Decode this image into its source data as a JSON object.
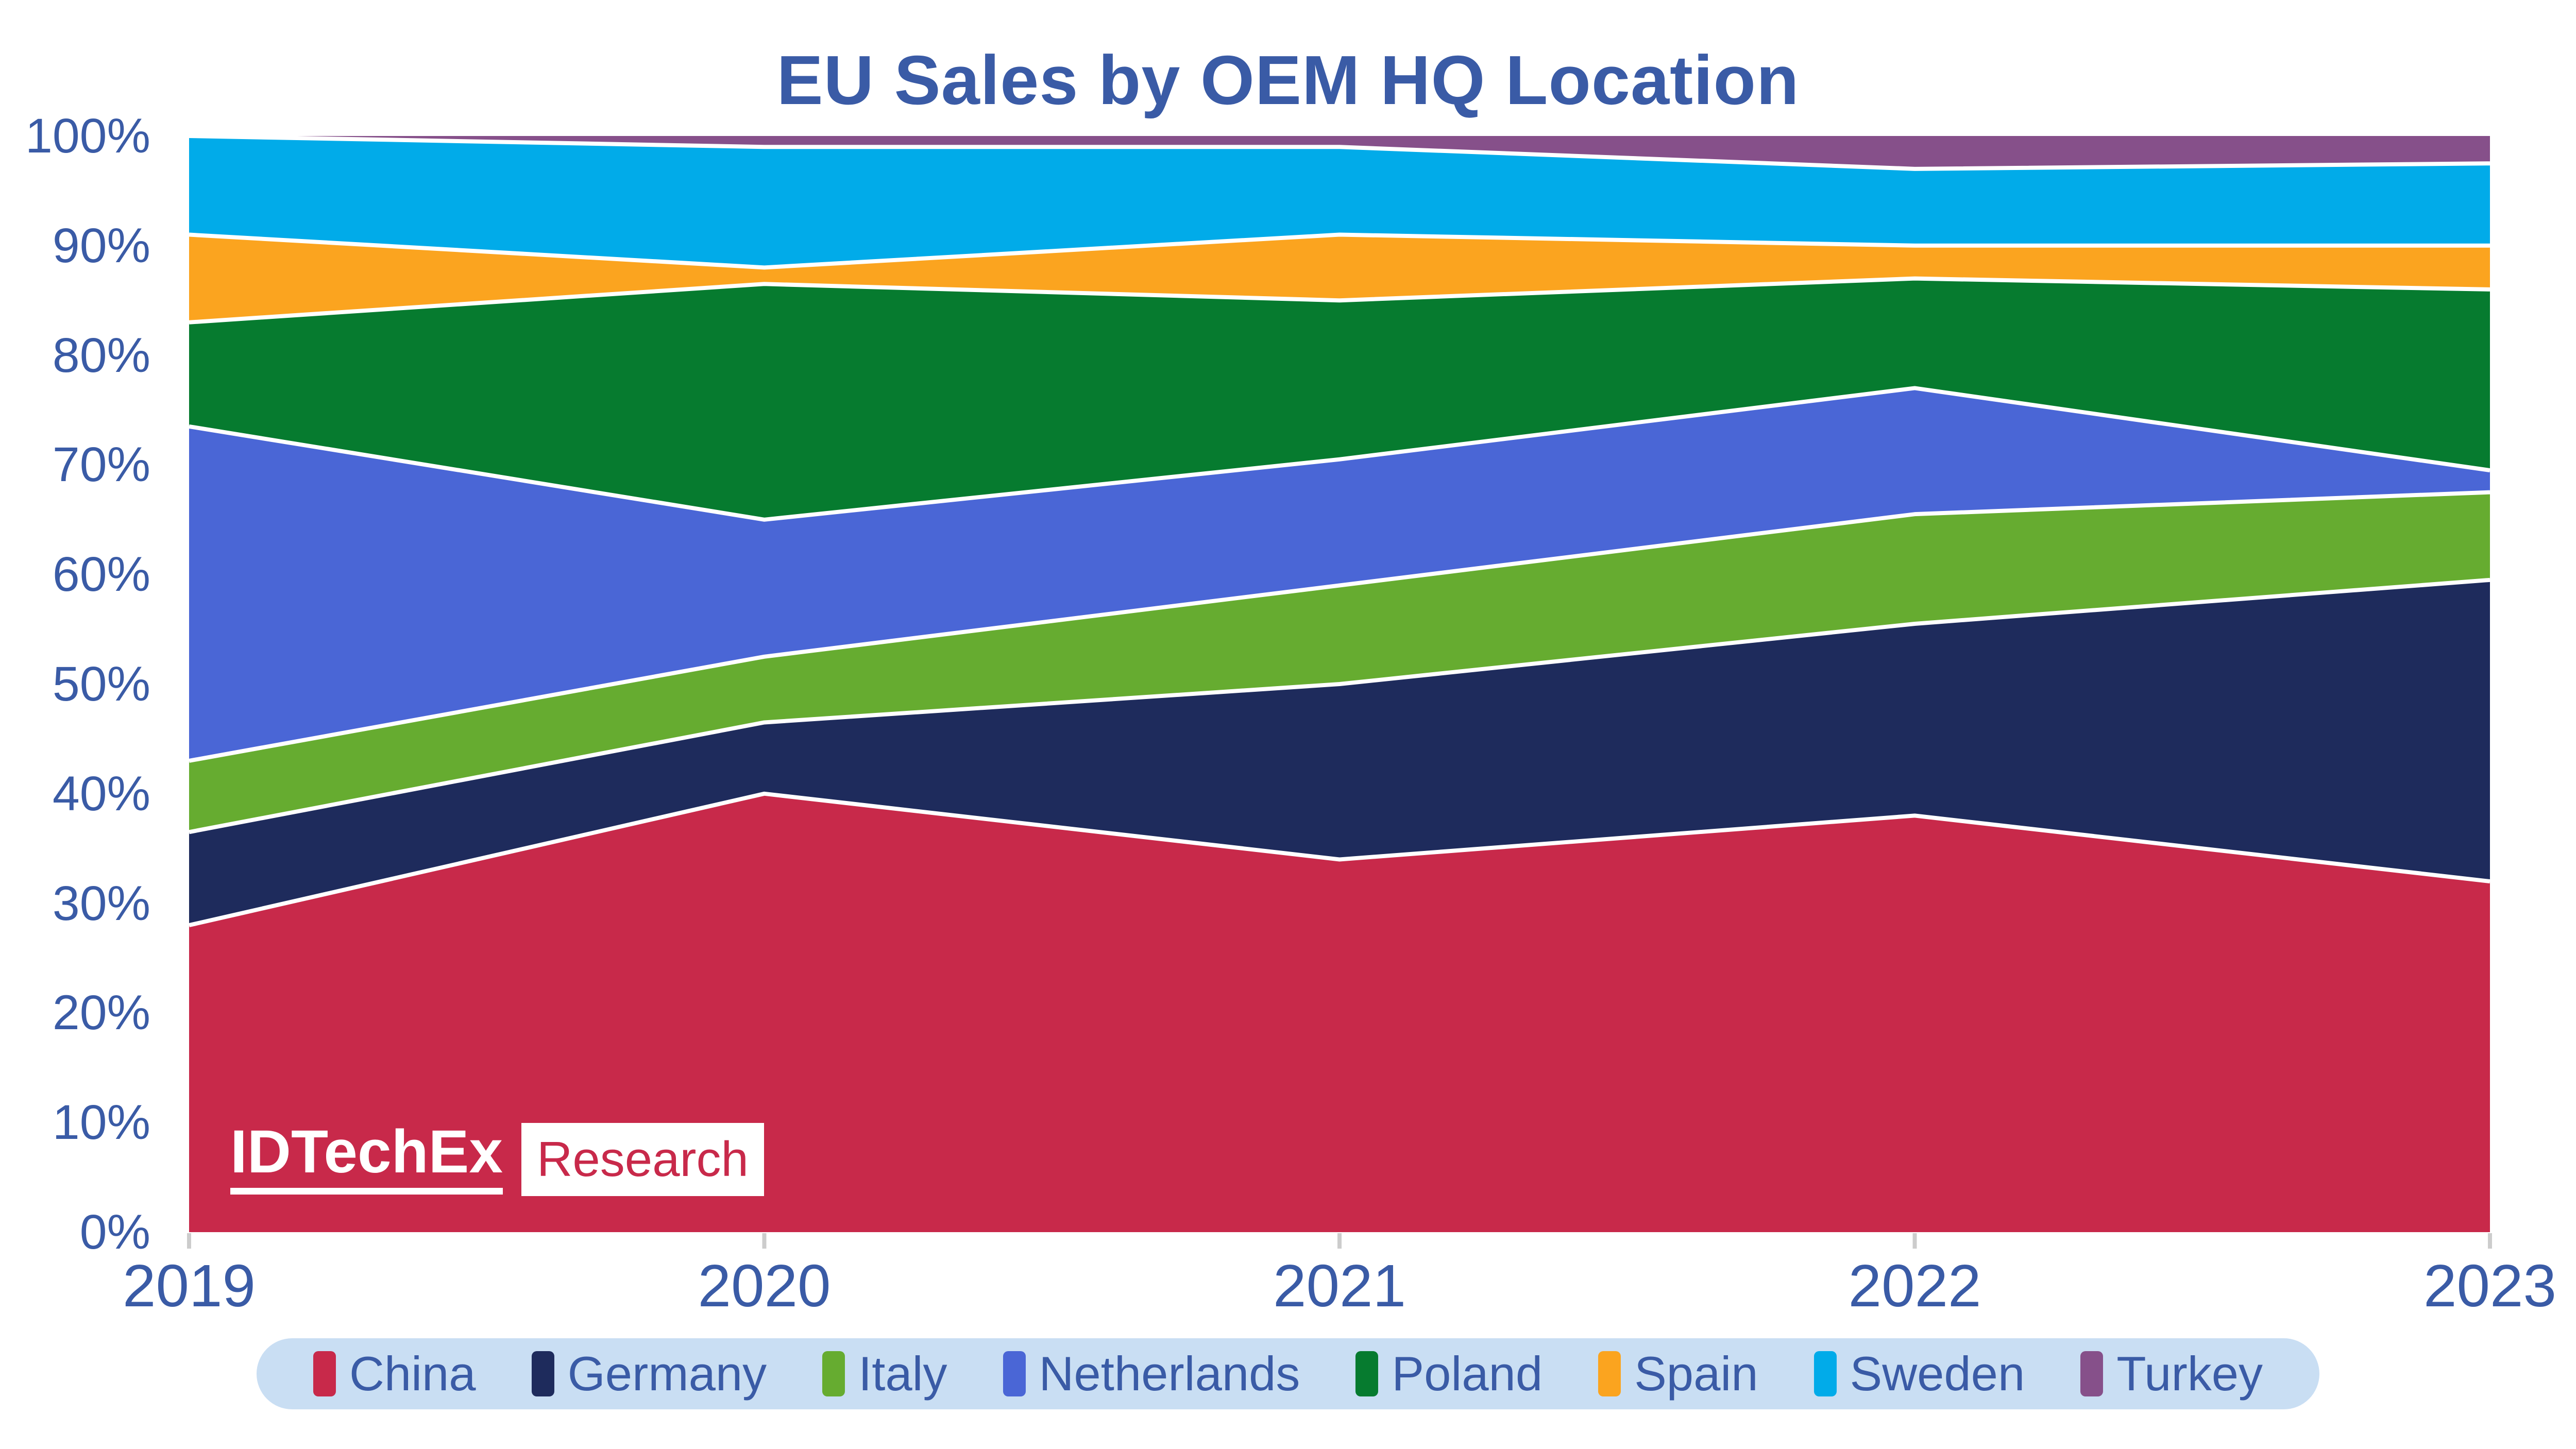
{
  "title": "EU Sales by OEM HQ Location",
  "watermark": {
    "brand": "IDTechEx",
    "suffix": "Research",
    "brand_color": "#ffffff",
    "suffix_color": "#C8294A"
  },
  "colors": {
    "title_text": "#3A5BA6",
    "axis_text": "#3A5BA6",
    "legend_background": "#C9DEF3",
    "series_separator": "#ffffff",
    "tick_mark": "#CCCCCC",
    "background": "#ffffff"
  },
  "chart_data": {
    "type": "area",
    "stacked": true,
    "stack_total": 100,
    "title": "EU Sales by OEM HQ Location",
    "xlabel": "",
    "ylabel": "",
    "x": [
      "2019",
      "2020",
      "2021",
      "2022",
      "2023"
    ],
    "ylim": [
      0,
      100
    ],
    "yticks": [
      "0%",
      "10%",
      "20%",
      "30%",
      "40%",
      "50%",
      "60%",
      "70%",
      "80%",
      "90%",
      "100%"
    ],
    "grid": false,
    "legend_position": "bottom",
    "series": [
      {
        "name": "China",
        "color": "#C8294A",
        "values": [
          28,
          40,
          34,
          38,
          32
        ]
      },
      {
        "name": "Germany",
        "color": "#1E2B5C",
        "values": [
          8.5,
          6.5,
          16,
          17.5,
          27.5
        ]
      },
      {
        "name": "Italy",
        "color": "#66AC30",
        "values": [
          6.5,
          6,
          9,
          10,
          8
        ]
      },
      {
        "name": "Netherlands",
        "color": "#4A66D6",
        "values": [
          30.5,
          12.5,
          11.5,
          11.5,
          2
        ]
      },
      {
        "name": "Poland",
        "color": "#067B2F",
        "values": [
          9.5,
          21.5,
          14.5,
          10,
          16.5
        ]
      },
      {
        "name": "Spain",
        "color": "#FBA41F",
        "values": [
          8,
          1.5,
          6,
          3,
          4
        ]
      },
      {
        "name": "Sweden",
        "color": "#01ABE9",
        "values": [
          9,
          11,
          8,
          7,
          7.5
        ]
      },
      {
        "name": "Turkey",
        "color": "#86508A",
        "values": [
          0,
          1,
          1,
          3,
          2.5
        ]
      }
    ]
  }
}
